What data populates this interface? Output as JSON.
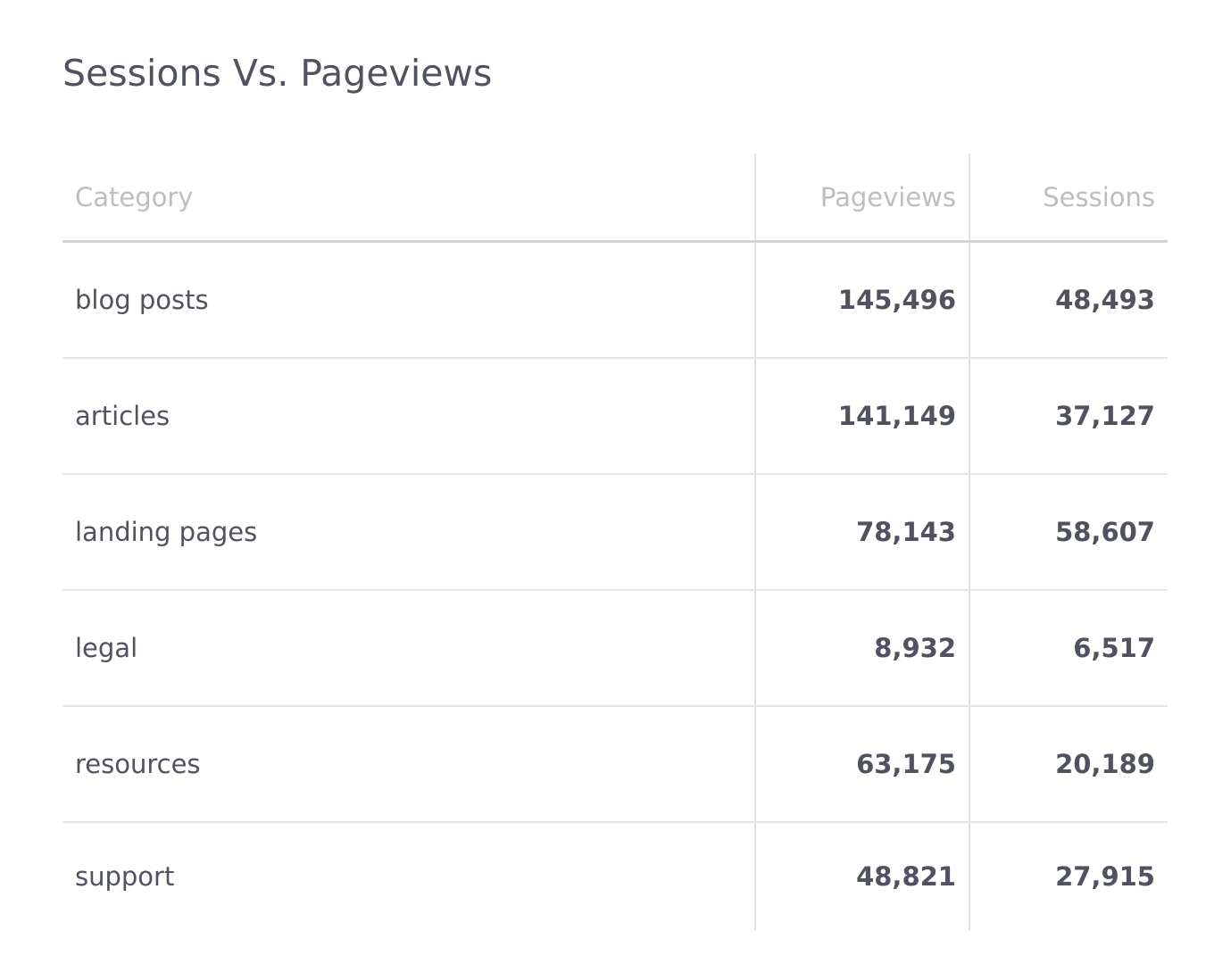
{
  "header": {
    "title": "Sessions Vs. Pageviews"
  },
  "table": {
    "columns": [
      "Category",
      "Pageviews",
      "Sessions"
    ],
    "rows": [
      [
        "blog posts",
        "145,496",
        "48,493"
      ],
      [
        "articles",
        "141,149",
        "37,127"
      ],
      [
        "landing pages",
        "78,143",
        "58,607"
      ],
      [
        "legal",
        "8,932",
        "6,517"
      ],
      [
        "resources",
        "63,175",
        "20,189"
      ],
      [
        "support",
        "48,821",
        "27,915"
      ]
    ]
  }
}
